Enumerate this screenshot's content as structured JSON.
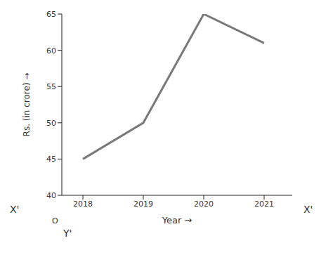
{
  "chart_data": {
    "type": "line",
    "x_label": "Year →",
    "y_label": "Rs. (in crore) →",
    "categories": [
      "2018",
      "2019",
      "2020",
      "2021"
    ],
    "values": [
      45,
      50,
      65,
      61
    ],
    "color": "#7a7a7a",
    "ylim": [
      40,
      65
    ],
    "yticks": [
      40,
      45,
      50,
      55,
      60,
      65
    ],
    "grid": false,
    "annotations": {
      "x_left": "X'",
      "x_right": "X'",
      "origin": "O",
      "y_bottom": "Y'"
    }
  }
}
